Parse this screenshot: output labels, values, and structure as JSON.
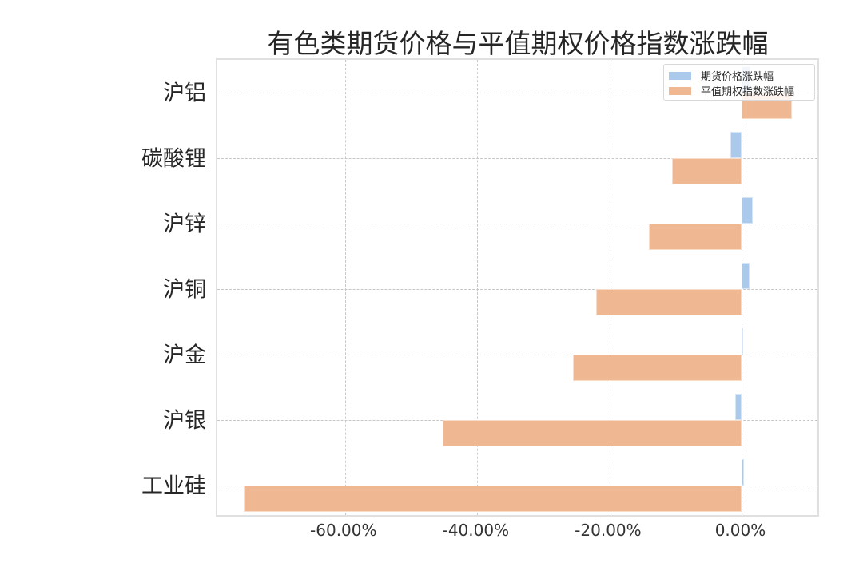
{
  "chart_data": {
    "type": "bar",
    "orientation": "horizontal",
    "title": "有色类期货价格与平值期权价格指数涨跌幅",
    "xlabel": "",
    "ylabel": "",
    "categories": [
      "沪铝",
      "碳酸锂",
      "沪锌",
      "沪铜",
      "沪金",
      "沪银",
      "工业硅"
    ],
    "series": [
      {
        "name": "期货价格涨跌幅",
        "color": "#abc9ea",
        "values": [
          1.3,
          -1.7,
          1.6,
          1.1,
          0.0,
          -1.0,
          0.3
        ]
      },
      {
        "name": "平值期权指数涨跌幅",
        "color": "#efb792",
        "values": [
          7.6,
          -10.6,
          -14.1,
          -22.1,
          -25.5,
          -45.2,
          -75.3
        ]
      }
    ],
    "value_unit": "%",
    "xlim": [
      -79.3,
      11.9
    ],
    "xticks": [
      -60,
      -40,
      -20,
      0
    ],
    "xtick_labels": [
      "-60.00%",
      "-40.00%",
      "-20.00%",
      "0.00%"
    ],
    "grid": true,
    "legend_position": "upper right"
  },
  "legend": {
    "items": [
      {
        "label": "期货价格涨跌幅",
        "color": "#abc9ea"
      },
      {
        "label": "平值期权指数涨跌幅",
        "color": "#efb792"
      }
    ]
  }
}
